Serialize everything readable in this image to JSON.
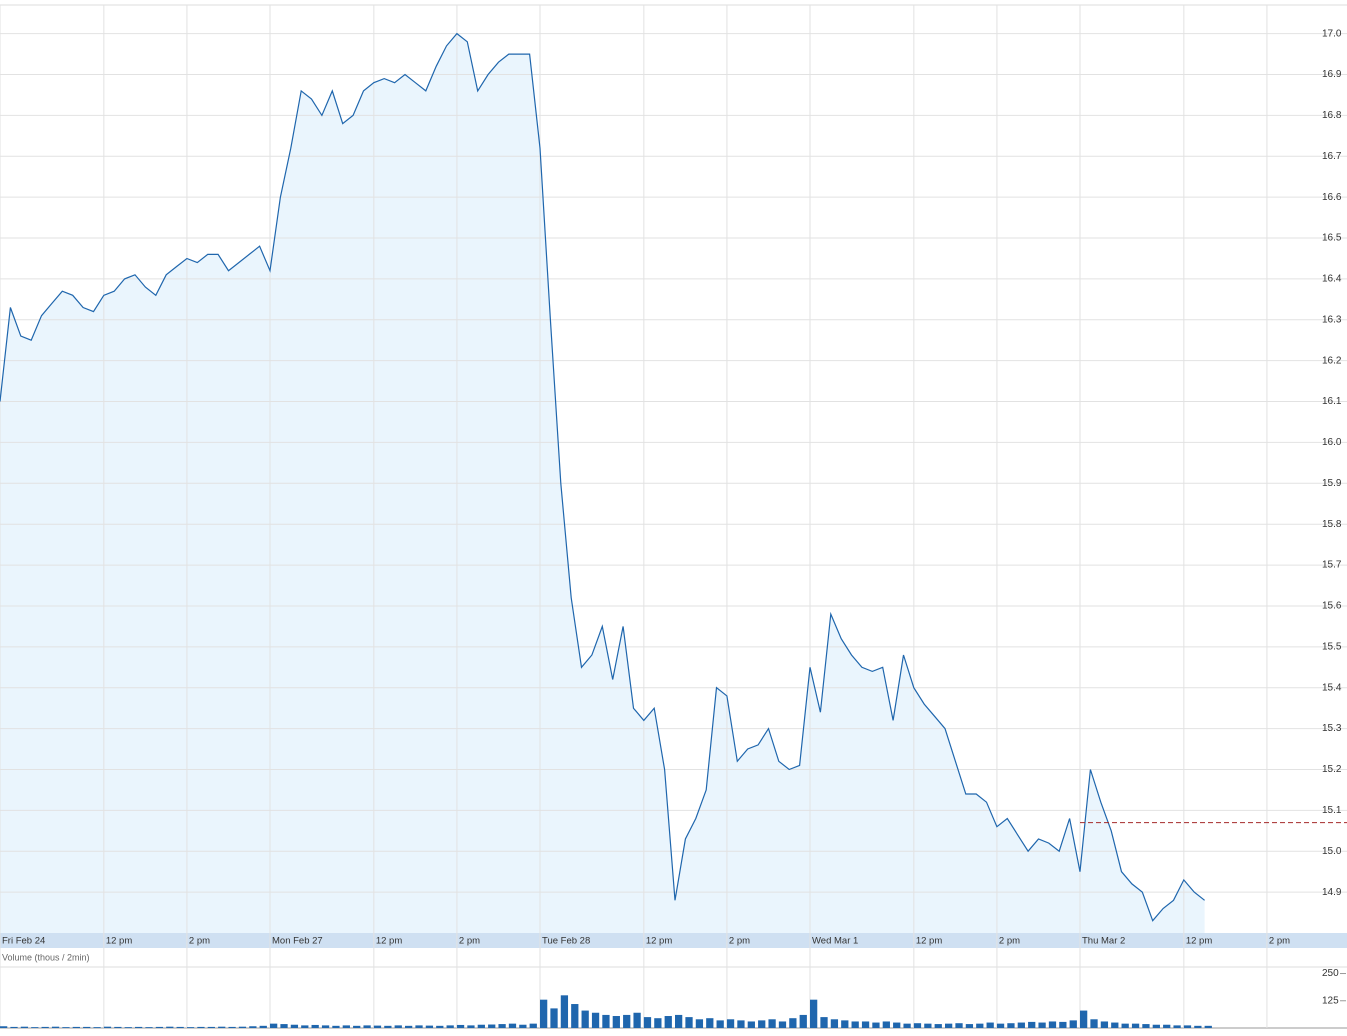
{
  "chart_data": {
    "type": "line",
    "categories": [
      "Fri Feb 24",
      null,
      null,
      null,
      null,
      null,
      null,
      null,
      null,
      null,
      "12 pm",
      null,
      null,
      null,
      null,
      null,
      null,
      null,
      "2 pm",
      null,
      null,
      null,
      null,
      null,
      null,
      null,
      "Mon Feb 27",
      null,
      null,
      null,
      null,
      null,
      null,
      null,
      null,
      null,
      "12 pm",
      null,
      null,
      null,
      null,
      null,
      null,
      null,
      "2 pm",
      null,
      null,
      null,
      null,
      null,
      null,
      null,
      "Tue Feb 28",
      null,
      null,
      null,
      null,
      null,
      null,
      null,
      null,
      null,
      "12 pm",
      null,
      null,
      null,
      null,
      null,
      null,
      null,
      "2 pm",
      null,
      null,
      null,
      null,
      null,
      null,
      null,
      "Wed Mar 1",
      null,
      null,
      null,
      null,
      null,
      null,
      null,
      null,
      null,
      "12 pm",
      null,
      null,
      null,
      null,
      null,
      null,
      null,
      "2 pm",
      null,
      null,
      null,
      null,
      null,
      null,
      null,
      "Thu Mar 2",
      null,
      null,
      null,
      null,
      null,
      null,
      null,
      null,
      null,
      "12 pm",
      null,
      null,
      null,
      null,
      null,
      null,
      null,
      "2 pm",
      null,
      null,
      null,
      null,
      null,
      null,
      null
    ],
    "series": [
      {
        "color": "#1f66ad",
        "values": [
          16.1,
          16.33,
          16.26,
          16.25,
          16.31,
          16.34,
          16.37,
          16.36,
          16.33,
          16.32,
          16.36,
          16.37,
          16.4,
          16.41,
          16.38,
          16.36,
          16.41,
          16.43,
          16.45,
          16.44,
          16.46,
          16.46,
          16.42,
          16.44,
          16.46,
          16.48,
          16.42,
          16.6,
          16.72,
          16.86,
          16.84,
          16.8,
          16.86,
          16.78,
          16.8,
          16.86,
          16.88,
          16.89,
          16.88,
          16.9,
          16.88,
          16.86,
          16.92,
          16.97,
          17.0,
          16.98,
          16.86,
          16.9,
          16.93,
          16.95,
          16.95,
          16.95,
          16.72,
          16.3,
          15.9,
          15.62,
          15.45,
          15.48,
          15.55,
          15.42,
          15.55,
          15.35,
          15.32,
          15.35,
          15.2,
          14.88,
          15.03,
          15.08,
          15.15,
          15.4,
          15.38,
          15.22,
          15.25,
          15.26,
          15.3,
          15.22,
          15.2,
          15.21,
          15.45,
          15.34,
          15.58,
          15.52,
          15.48,
          15.45,
          15.44,
          15.45,
          15.32,
          15.48,
          15.4,
          15.36,
          15.33,
          15.3,
          15.22,
          15.14,
          15.14,
          15.12,
          15.06,
          15.08,
          15.04,
          15.0,
          15.03,
          15.02,
          15.0,
          15.08,
          14.95,
          15.2,
          15.12,
          15.05,
          14.95,
          14.92,
          14.9,
          14.83,
          14.86,
          14.88,
          14.93,
          14.9,
          14.88,
          null,
          null,
          null,
          null,
          null,
          null,
          null,
          null,
          null,
          null,
          null,
          null,
          null
        ]
      }
    ],
    "fill_color": "#eaf5fd",
    "ylim": [
      14.8,
      17.07
    ],
    "yticks": [
      {
        "value": 14.9,
        "label": "14.9"
      },
      {
        "value": 15.0,
        "label": "15.0"
      },
      {
        "value": 15.1,
        "label": "15.1"
      },
      {
        "value": 15.2,
        "label": "15.2"
      },
      {
        "value": 15.3,
        "label": "15.3"
      },
      {
        "value": 15.4,
        "label": "15.4"
      },
      {
        "value": 15.5,
        "label": "15.5"
      },
      {
        "value": 15.6,
        "label": "15.6"
      },
      {
        "value": 15.7,
        "label": "15.7"
      },
      {
        "value": 15.8,
        "label": "15.8"
      },
      {
        "value": 15.9,
        "label": "15.9"
      },
      {
        "value": 16.0,
        "label": "16.0"
      },
      {
        "value": 16.1,
        "label": "16.1"
      },
      {
        "value": 16.2,
        "label": "16.2"
      },
      {
        "value": 16.3,
        "label": "16.3"
      },
      {
        "value": 16.4,
        "label": "16.4"
      },
      {
        "value": 16.5,
        "label": "16.5"
      },
      {
        "value": 16.6,
        "label": "16.6"
      },
      {
        "value": 16.7,
        "label": "16.7"
      },
      {
        "value": 16.8,
        "label": "16.8"
      },
      {
        "value": 16.9,
        "label": "16.9"
      },
      {
        "value": 17.0,
        "label": "17.0"
      }
    ],
    "grid": true,
    "reference_line": {
      "value": 15.07,
      "color": "#a52a2a",
      "from": "Thu Mar 2"
    },
    "volume": {
      "label": "Volume (thous / 2min)",
      "color": "#1f66ad",
      "values": [
        8,
        5,
        6,
        4,
        5,
        6,
        4,
        5,
        5,
        4,
        6,
        5,
        4,
        5,
        4,
        5,
        6,
        5,
        4,
        5,
        5,
        6,
        5,
        6,
        8,
        10,
        20,
        18,
        15,
        12,
        14,
        12,
        10,
        12,
        10,
        12,
        11,
        10,
        12,
        10,
        12,
        11,
        10,
        12,
        14,
        12,
        15,
        16,
        18,
        20,
        15,
        20,
        130,
        90,
        150,
        110,
        80,
        70,
        60,
        55,
        60,
        70,
        50,
        45,
        55,
        60,
        50,
        40,
        45,
        35,
        40,
        35,
        30,
        35,
        40,
        30,
        45,
        60,
        130,
        50,
        40,
        35,
        30,
        30,
        25,
        30,
        25,
        20,
        22,
        20,
        18,
        20,
        22,
        18,
        20,
        25,
        20,
        22,
        25,
        28,
        25,
        30,
        28,
        35,
        80,
        40,
        30,
        25,
        20,
        20,
        18,
        15,
        15,
        12,
        12,
        10,
        10,
        null,
        null,
        null,
        null,
        null,
        null,
        null,
        null,
        null,
        null,
        null,
        null,
        null
      ],
      "ylim": [
        0,
        280
      ],
      "yticks": [
        125,
        250
      ]
    }
  }
}
